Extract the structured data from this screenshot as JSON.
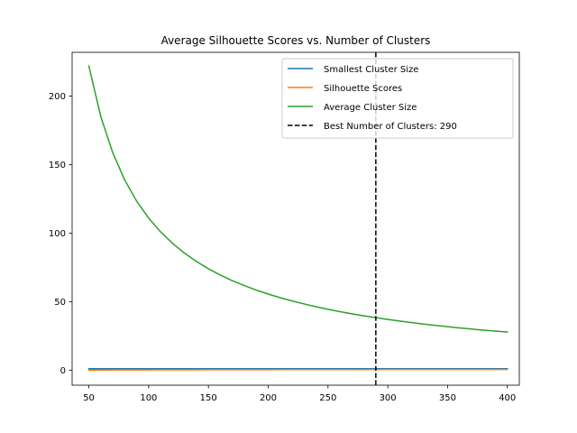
{
  "chart_data": {
    "type": "line",
    "title": "Average Silhouette Scores vs. Number of Clusters",
    "xlabel": "",
    "ylabel": "",
    "xlim": [
      36,
      410
    ],
    "ylim": [
      -11,
      232
    ],
    "xticks": [
      50,
      100,
      150,
      200,
      250,
      300,
      350,
      400
    ],
    "yticks": [
      0,
      50,
      100,
      150,
      200
    ],
    "grid": false,
    "legend_position": "upper right",
    "x": [
      50,
      60,
      70,
      80,
      90,
      100,
      110,
      120,
      130,
      140,
      150,
      160,
      170,
      180,
      190,
      200,
      210,
      220,
      230,
      240,
      250,
      260,
      270,
      280,
      290,
      300,
      310,
      320,
      330,
      340,
      350,
      360,
      370,
      380,
      390,
      400
    ],
    "series": [
      {
        "name": "Smallest Cluster Size",
        "color": "#1f77b4",
        "values": [
          1,
          1,
          1,
          1,
          1,
          1,
          1,
          1,
          1,
          1,
          1,
          1,
          1,
          1,
          1,
          1,
          1,
          1,
          1,
          1,
          1,
          1,
          1,
          1,
          1,
          1,
          1,
          1,
          1,
          1,
          1,
          1,
          1,
          1,
          1,
          1
        ]
      },
      {
        "name": "Silhouette Scores",
        "color": "#ff7f0e",
        "values": [
          0.05,
          0.07,
          0.09,
          0.11,
          0.13,
          0.15,
          0.17,
          0.19,
          0.2,
          0.22,
          0.24,
          0.25,
          0.27,
          0.28,
          0.3,
          0.31,
          0.33,
          0.34,
          0.35,
          0.36,
          0.37,
          0.38,
          0.39,
          0.4,
          0.41,
          0.42,
          0.42,
          0.43,
          0.43,
          0.44,
          0.44,
          0.45,
          0.45,
          0.45,
          0.46,
          0.46
        ]
      },
      {
        "name": "Average Cluster Size",
        "color": "#2ca02c",
        "values": [
          222,
          185,
          158.6,
          138.8,
          123.3,
          111,
          100.9,
          92.5,
          85.4,
          79.3,
          74,
          69.4,
          65.3,
          61.7,
          58.4,
          55.5,
          52.9,
          50.5,
          48.3,
          46.3,
          44.4,
          42.7,
          41.1,
          39.6,
          38.3,
          37,
          35.8,
          34.7,
          33.6,
          32.6,
          31.7,
          30.8,
          30,
          29.2,
          28.5,
          27.8
        ]
      }
    ],
    "vline": {
      "x": 290,
      "name": "Best Number of Clusters: 290",
      "color": "#000000",
      "style": "dashed"
    }
  }
}
